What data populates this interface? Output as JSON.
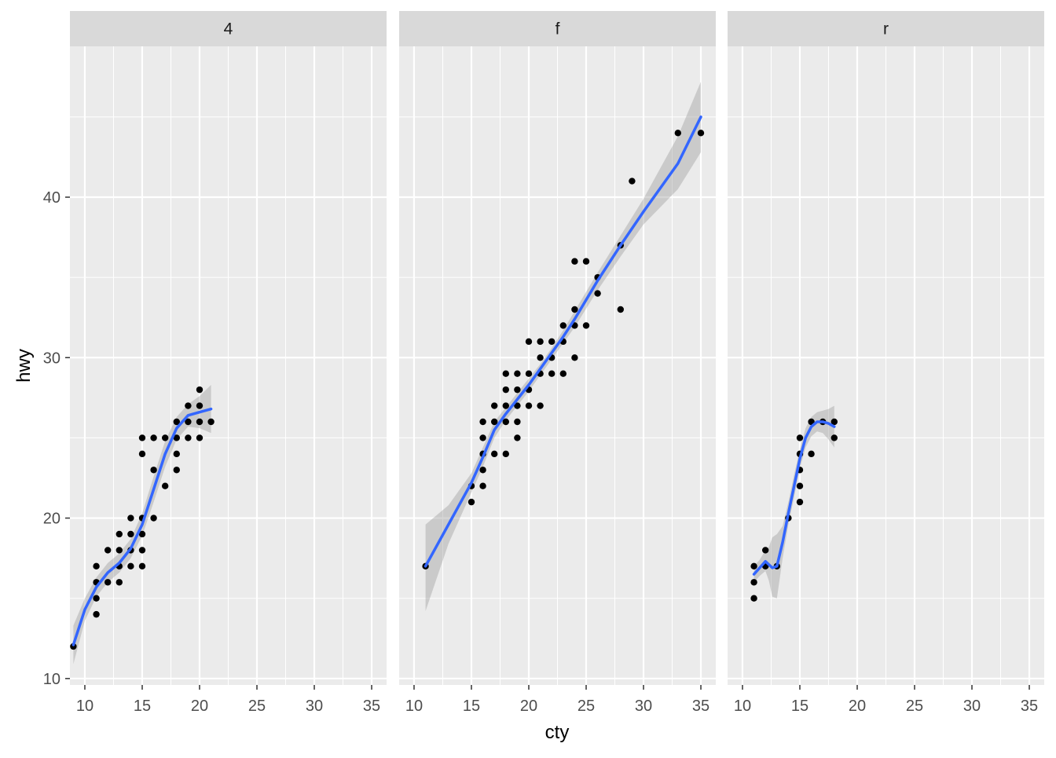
{
  "chart_data": {
    "type": "scatter",
    "xlabel": "cty",
    "ylabel": "hwy",
    "xlim": [
      8.7,
      36.3
    ],
    "ylim": [
      9.6,
      49.4
    ],
    "x_ticks": [
      10,
      15,
      20,
      25,
      30,
      35
    ],
    "y_ticks": [
      10,
      20,
      30,
      40
    ],
    "grid": true,
    "colors": {
      "panel_background": "#ebebeb",
      "strip_background": "#d9d9d9",
      "grid_line": "#ffffff",
      "point": "#000000",
      "smooth_line": "#3366ff",
      "ribbon": "#999999"
    },
    "facets": [
      {
        "label": "4",
        "points": [
          [
            9,
            12
          ],
          [
            11,
            14
          ],
          [
            11,
            15
          ],
          [
            11,
            16
          ],
          [
            11,
            17
          ],
          [
            12,
            16
          ],
          [
            12,
            18
          ],
          [
            13,
            16
          ],
          [
            13,
            17
          ],
          [
            13,
            18
          ],
          [
            13,
            19
          ],
          [
            14,
            17
          ],
          [
            14,
            18
          ],
          [
            14,
            19
          ],
          [
            14,
            20
          ],
          [
            15,
            17
          ],
          [
            15,
            18
          ],
          [
            15,
            19
          ],
          [
            15,
            20
          ],
          [
            15,
            24
          ],
          [
            15,
            25
          ],
          [
            16,
            20
          ],
          [
            16,
            23
          ],
          [
            16,
            25
          ],
          [
            17,
            22
          ],
          [
            17,
            25
          ],
          [
            18,
            23
          ],
          [
            18,
            24
          ],
          [
            18,
            25
          ],
          [
            18,
            26
          ],
          [
            19,
            25
          ],
          [
            19,
            26
          ],
          [
            19,
            27
          ],
          [
            20,
            25
          ],
          [
            20,
            26
          ],
          [
            20,
            27
          ],
          [
            20,
            28
          ],
          [
            21,
            26
          ]
        ],
        "smooth": [
          [
            9,
            12.1
          ],
          [
            10,
            14.3
          ],
          [
            11,
            15.7
          ],
          [
            12,
            16.6
          ],
          [
            13,
            17.2
          ],
          [
            14,
            18.1
          ],
          [
            15,
            19.6
          ],
          [
            16,
            21.8
          ],
          [
            17,
            24.0
          ],
          [
            18,
            25.6
          ],
          [
            19,
            26.4
          ],
          [
            20,
            26.6
          ],
          [
            21,
            26.8
          ]
        ],
        "ribbon_upper": [
          [
            9,
            13.3
          ],
          [
            10,
            15.0
          ],
          [
            11,
            16.3
          ],
          [
            12,
            17.2
          ],
          [
            13,
            17.8
          ],
          [
            14,
            18.7
          ],
          [
            15,
            20.3
          ],
          [
            16,
            22.6
          ],
          [
            17,
            24.8
          ],
          [
            18,
            26.3
          ],
          [
            19,
            27.1
          ],
          [
            20,
            27.6
          ],
          [
            21,
            28.3
          ]
        ],
        "ribbon_lower": [
          [
            9,
            10.9
          ],
          [
            10,
            13.6
          ],
          [
            11,
            15.1
          ],
          [
            12,
            16.0
          ],
          [
            13,
            16.6
          ],
          [
            14,
            17.5
          ],
          [
            15,
            18.9
          ],
          [
            16,
            21.0
          ],
          [
            17,
            23.2
          ],
          [
            18,
            24.9
          ],
          [
            19,
            25.7
          ],
          [
            20,
            25.6
          ],
          [
            21,
            25.3
          ]
        ]
      },
      {
        "label": "f",
        "points": [
          [
            11,
            17
          ],
          [
            15,
            21
          ],
          [
            15,
            22
          ],
          [
            16,
            22
          ],
          [
            16,
            23
          ],
          [
            16,
            24
          ],
          [
            16,
            25
          ],
          [
            16,
            26
          ],
          [
            17,
            24
          ],
          [
            17,
            26
          ],
          [
            17,
            27
          ],
          [
            18,
            24
          ],
          [
            18,
            26
          ],
          [
            18,
            27
          ],
          [
            18,
            28
          ],
          [
            18,
            29
          ],
          [
            19,
            25
          ],
          [
            19,
            26
          ],
          [
            19,
            27
          ],
          [
            19,
            28
          ],
          [
            19,
            29
          ],
          [
            20,
            27
          ],
          [
            20,
            28
          ],
          [
            20,
            29
          ],
          [
            20,
            31
          ],
          [
            21,
            27
          ],
          [
            21,
            29
          ],
          [
            21,
            30
          ],
          [
            21,
            31
          ],
          [
            22,
            29
          ],
          [
            22,
            30
          ],
          [
            22,
            31
          ],
          [
            23,
            29
          ],
          [
            23,
            31
          ],
          [
            23,
            32
          ],
          [
            24,
            30
          ],
          [
            24,
            32
          ],
          [
            24,
            33
          ],
          [
            24,
            36
          ],
          [
            25,
            32
          ],
          [
            25,
            36
          ],
          [
            26,
            34
          ],
          [
            26,
            35
          ],
          [
            28,
            33
          ],
          [
            28,
            37
          ],
          [
            29,
            41
          ],
          [
            33,
            44
          ],
          [
            35,
            44
          ]
        ],
        "smooth": [
          [
            11,
            17.0
          ],
          [
            13,
            19.6
          ],
          [
            15,
            22.2
          ],
          [
            16,
            23.8
          ],
          [
            17,
            25.5
          ],
          [
            18,
            26.5
          ],
          [
            19,
            27.4
          ],
          [
            20,
            28.3
          ],
          [
            21,
            29.3
          ],
          [
            22,
            30.3
          ],
          [
            23,
            31.3
          ],
          [
            24,
            32.4
          ],
          [
            26,
            34.8
          ],
          [
            28,
            37.0
          ],
          [
            30,
            39.1
          ],
          [
            33,
            42.1
          ],
          [
            35,
            45.0
          ]
        ],
        "ribbon_upper": [
          [
            11,
            19.6
          ],
          [
            13,
            20.8
          ],
          [
            15,
            22.8
          ],
          [
            16,
            24.4
          ],
          [
            17,
            26.0
          ],
          [
            18,
            26.9
          ],
          [
            19,
            27.8
          ],
          [
            20,
            28.7
          ],
          [
            21,
            29.6
          ],
          [
            22,
            30.6
          ],
          [
            23,
            31.7
          ],
          [
            24,
            32.9
          ],
          [
            26,
            35.3
          ],
          [
            28,
            37.6
          ],
          [
            30,
            39.9
          ],
          [
            33,
            43.8
          ],
          [
            35,
            47.2
          ]
        ],
        "ribbon_lower": [
          [
            11,
            14.2
          ],
          [
            13,
            18.4
          ],
          [
            15,
            21.6
          ],
          [
            16,
            23.2
          ],
          [
            17,
            25.0
          ],
          [
            18,
            26.1
          ],
          [
            19,
            27.0
          ],
          [
            20,
            27.9
          ],
          [
            21,
            28.9
          ],
          [
            22,
            29.9
          ],
          [
            23,
            30.9
          ],
          [
            24,
            31.9
          ],
          [
            26,
            34.2
          ],
          [
            28,
            36.3
          ],
          [
            30,
            38.3
          ],
          [
            33,
            40.5
          ],
          [
            35,
            42.8
          ]
        ]
      },
      {
        "label": "r",
        "points": [
          [
            11,
            15
          ],
          [
            11,
            16
          ],
          [
            11,
            17
          ],
          [
            12,
            17
          ],
          [
            12,
            18
          ],
          [
            13,
            17
          ],
          [
            14,
            20
          ],
          [
            15,
            21
          ],
          [
            15,
            22
          ],
          [
            15,
            23
          ],
          [
            15,
            24
          ],
          [
            15,
            25
          ],
          [
            16,
            24
          ],
          [
            16,
            26
          ],
          [
            17,
            26
          ],
          [
            18,
            25
          ],
          [
            18,
            26
          ]
        ],
        "smooth": [
          [
            11,
            16.5
          ],
          [
            11.5,
            16.9
          ],
          [
            12,
            17.3
          ],
          [
            12.3,
            17.1
          ],
          [
            12.6,
            16.9
          ],
          [
            13,
            17.0
          ],
          [
            13.5,
            18.5
          ],
          [
            14,
            20.3
          ],
          [
            14.5,
            22.0
          ],
          [
            15,
            23.7
          ],
          [
            15.5,
            25.0
          ],
          [
            16,
            25.7
          ],
          [
            16.5,
            26.0
          ],
          [
            17,
            26.0
          ],
          [
            17.5,
            25.9
          ],
          [
            18,
            25.7
          ]
        ],
        "ribbon_upper": [
          [
            11,
            17.0
          ],
          [
            11.5,
            17.4
          ],
          [
            12,
            18.0
          ],
          [
            12.3,
            18.2
          ],
          [
            12.6,
            18.8
          ],
          [
            13,
            19.0
          ],
          [
            13.5,
            19.5
          ],
          [
            14,
            21.0
          ],
          [
            14.5,
            22.7
          ],
          [
            15,
            24.3
          ],
          [
            15.5,
            25.6
          ],
          [
            16,
            26.3
          ],
          [
            16.5,
            26.6
          ],
          [
            17,
            26.7
          ],
          [
            17.5,
            26.8
          ],
          [
            18,
            27.0
          ]
        ],
        "ribbon_lower": [
          [
            11,
            16.0
          ],
          [
            11.5,
            16.4
          ],
          [
            12,
            16.7
          ],
          [
            12.3,
            16.1
          ],
          [
            12.6,
            15.1
          ],
          [
            13,
            15.0
          ],
          [
            13.5,
            17.5
          ],
          [
            14,
            19.6
          ],
          [
            14.5,
            21.3
          ],
          [
            15,
            23.1
          ],
          [
            15.5,
            24.4
          ],
          [
            16,
            25.1
          ],
          [
            16.5,
            25.4
          ],
          [
            17,
            25.3
          ],
          [
            17.5,
            24.9
          ],
          [
            18,
            24.4
          ]
        ]
      }
    ]
  }
}
